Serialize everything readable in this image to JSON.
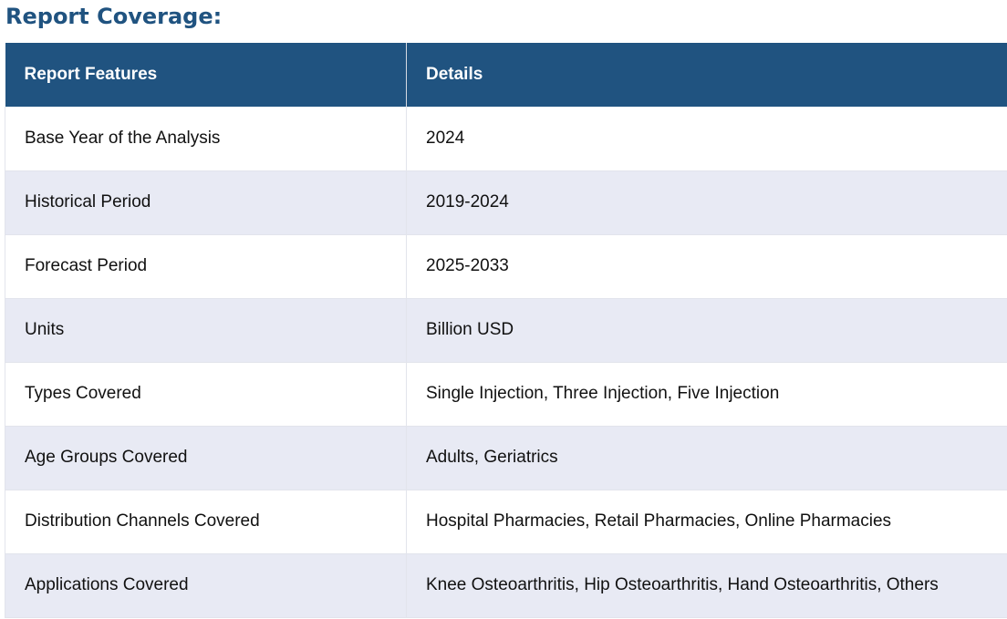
{
  "section_title": "Report Coverage:",
  "table": {
    "headers": [
      "Report Features",
      "Details"
    ],
    "rows": [
      [
        "Base Year of the Analysis",
        "2024"
      ],
      [
        "Historical Period",
        "2019-2024"
      ],
      [
        "Forecast Period",
        "2025-2033"
      ],
      [
        "Units",
        "Billion USD"
      ],
      [
        "Types Covered",
        "Single Injection, Three Injection, Five Injection"
      ],
      [
        "Age Groups Covered",
        "Adults, Geriatrics"
      ],
      [
        "Distribution Channels Covered",
        "Hospital Pharmacies, Retail Pharmacies, Online Pharmacies"
      ],
      [
        "Applications Covered",
        "Knee Osteoarthritis, Hip Osteoarthritis, Hand Osteoarthritis, Others"
      ]
    ]
  },
  "colors": {
    "title": "#205380",
    "header_bg": "#205380",
    "header_text": "#ffffff",
    "row_alt_bg": "#e8eaf4",
    "row_bg": "#ffffff"
  }
}
